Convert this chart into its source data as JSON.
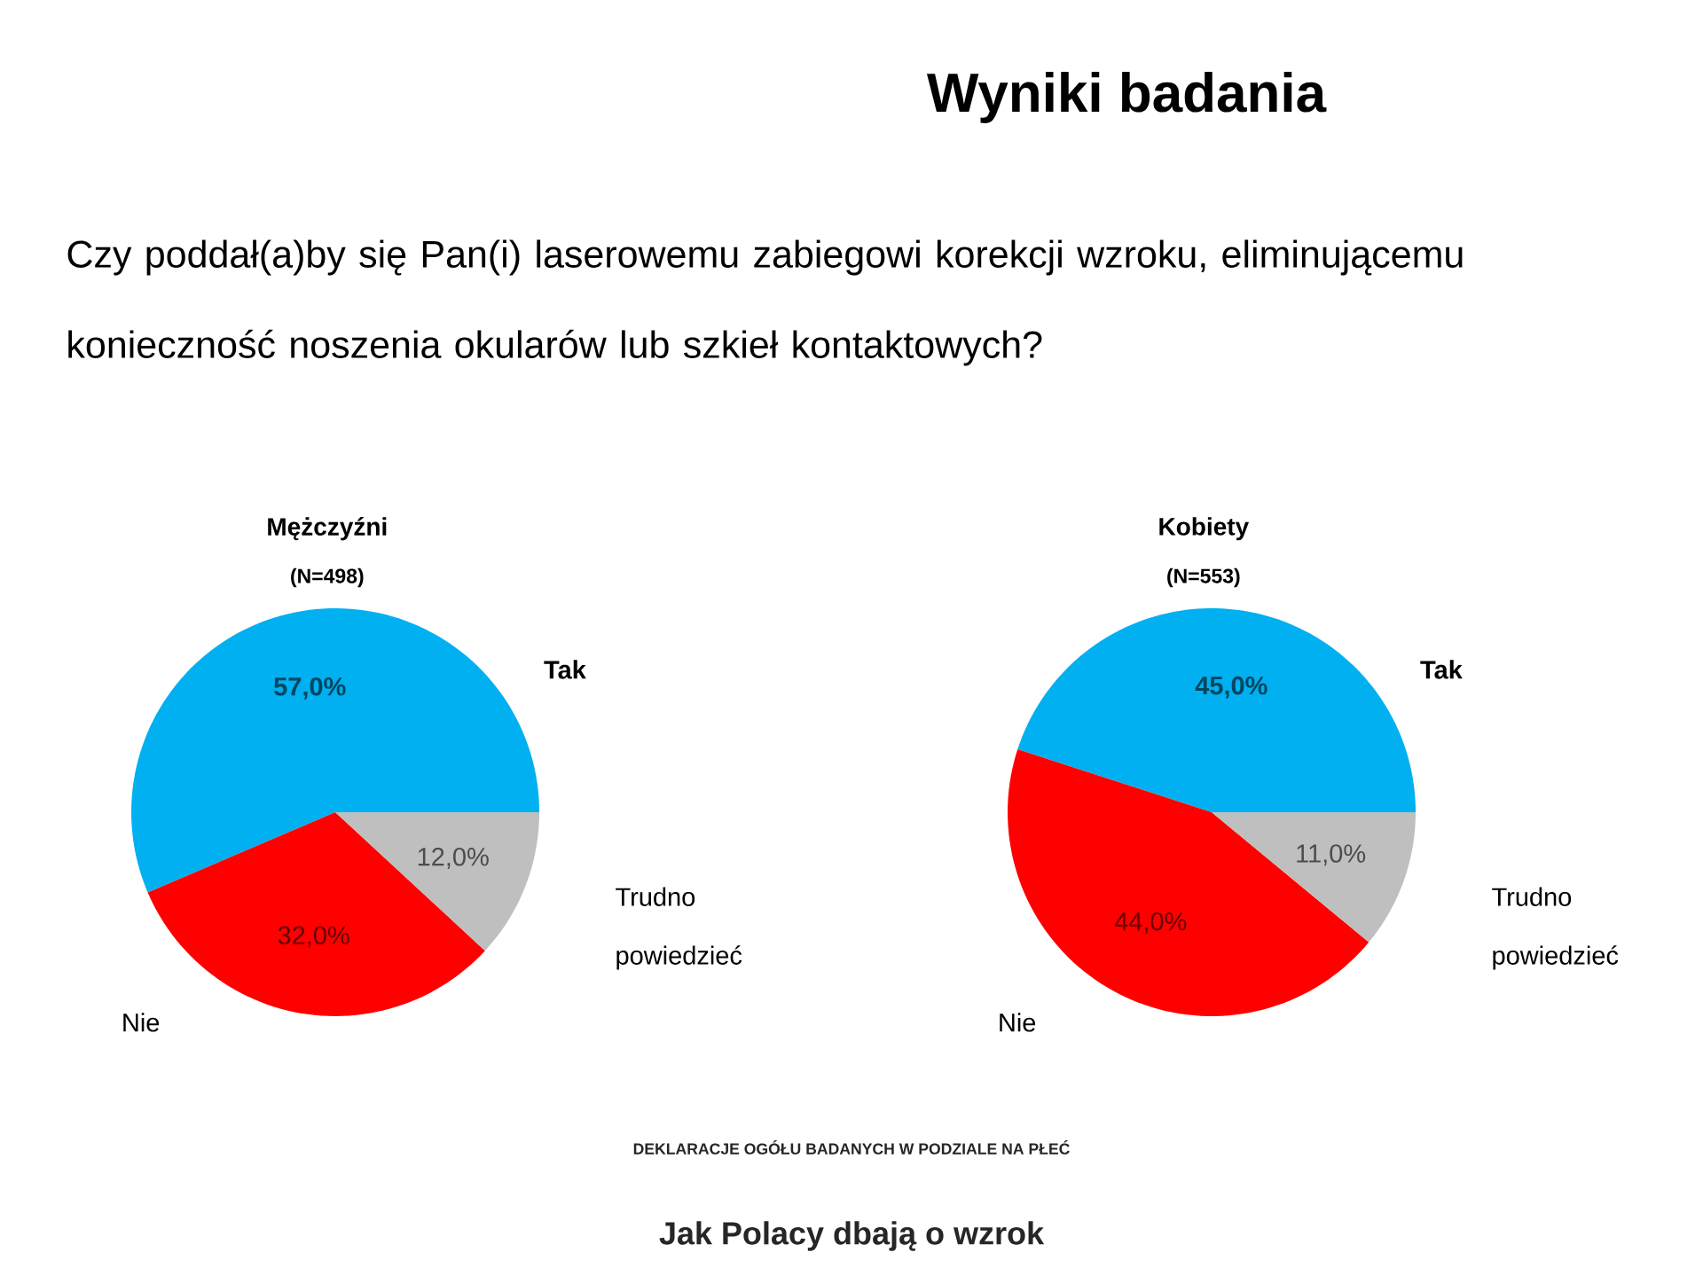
{
  "chart_data": [
    {
      "type": "other",
      "title": "Wyniki badania",
      "subtitle": "Czy poddał(a)by się Pan(i) laserowemu zabiegowi korekcji wzroku, eliminującemu konieczność noszenia okularów lub szkieł kontaktowych?",
      "annotations": [
        "DEKLARACJE OGÓŁU BADANYCH W PODZIALE NA PŁEĆ",
        "Jak Polacy dbają o wzrok"
      ]
    },
    {
      "type": "pie",
      "title": "Mężczyźni",
      "subtitle": "(N=498)",
      "categories": [
        "Tak",
        "Nie",
        "Trudno powiedzieć"
      ],
      "values": [
        57,
        32,
        12
      ],
      "colors": [
        "#00b0f0",
        "#ff0000",
        "#bfbfbf"
      ],
      "value_labels": [
        "57,0%",
        "32,0%",
        "12,0%"
      ]
    },
    {
      "type": "pie",
      "title": "Kobiety",
      "subtitle": "(N=553)",
      "categories": [
        "Tak",
        "Nie",
        "Trudno powiedzieć"
      ],
      "values": [
        45,
        44,
        11
      ],
      "colors": [
        "#00b0f0",
        "#ff0000",
        "#bfbfbf"
      ],
      "value_labels": [
        "45,0%",
        "44,0%",
        "11,0%"
      ]
    }
  ]
}
